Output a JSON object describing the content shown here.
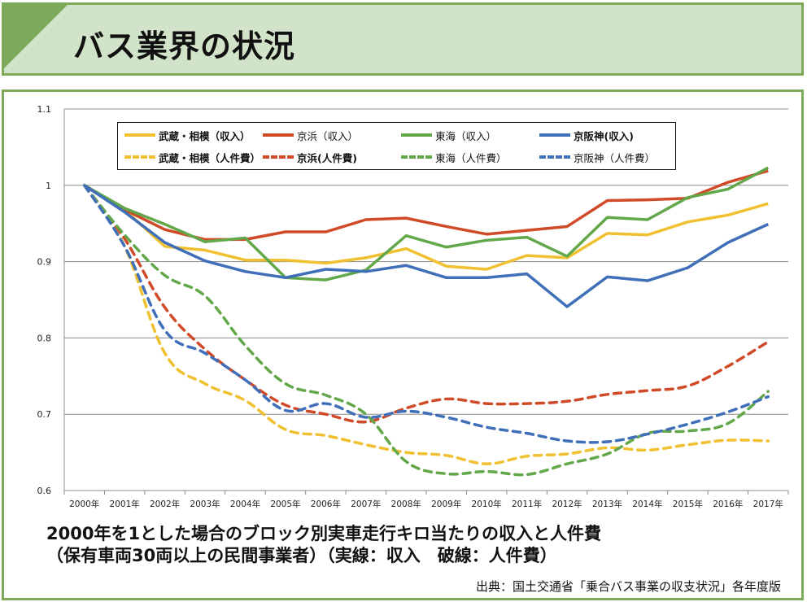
{
  "header": {
    "title": "バス業界の状況"
  },
  "caption": {
    "line1": "2000年を1とした場合のブロック別実車走行キロ当たりの収入と人件費",
    "line2": "（保有車両30両以上の民間事業者）（実線：収入　破線：人件費）",
    "source": "出典：国土交通省「乗合バス事業の収支状況」各年度版"
  },
  "colors": {
    "frame": "#7ea85a",
    "header_bg": "#d1e3c8",
    "musashi": "#f0c030",
    "keihin": "#d04a28",
    "tokai": "#62a84a",
    "keihanshin": "#3f6fb8"
  },
  "chart_data": {
    "type": "line",
    "title": "",
    "xlabel": "",
    "ylabel": "",
    "ylim": [
      0.6,
      1.1
    ],
    "yticks": [
      "0.6",
      "0.7",
      "0.8",
      "0.9",
      "1",
      "1.1"
    ],
    "grid": true,
    "legend_position": "top",
    "categories": [
      "2000年",
      "2001年",
      "2002年",
      "2003年",
      "2004年",
      "2005年",
      "2006年",
      "2007年",
      "2008年",
      "2009年",
      "2010年",
      "2011年",
      "2012年",
      "2013年",
      "2014年",
      "2015年",
      "2016年",
      "2017年"
    ],
    "series": [
      {
        "name": "武蔵・相模（収入）",
        "color": "#f0c030",
        "style": "solid",
        "bold": true,
        "values": [
          1.0,
          0.968,
          0.92,
          0.915,
          0.902,
          0.902,
          0.898,
          0.905,
          0.917,
          0.894,
          0.89,
          0.908,
          0.905,
          0.937,
          0.935,
          0.952,
          0.961,
          0.976
        ]
      },
      {
        "name": "京浜（収入）",
        "color": "#d04a28",
        "style": "solid",
        "bold": false,
        "values": [
          1.0,
          0.968,
          0.942,
          0.929,
          0.929,
          0.939,
          0.939,
          0.955,
          0.957,
          0.946,
          0.936,
          0.941,
          0.946,
          0.98,
          0.981,
          0.983,
          1.004,
          1.019
        ]
      },
      {
        "name": "東海（収入）",
        "color": "#62a84a",
        "style": "solid",
        "bold": false,
        "values": [
          1.0,
          0.97,
          0.949,
          0.926,
          0.931,
          0.879,
          0.876,
          0.889,
          0.934,
          0.919,
          0.928,
          0.932,
          0.907,
          0.958,
          0.955,
          0.984,
          0.995,
          1.023
        ]
      },
      {
        "name": "京阪神(収入)",
        "color": "#3f6fb8",
        "style": "solid",
        "bold": true,
        "values": [
          1.0,
          0.965,
          0.925,
          0.901,
          0.887,
          0.879,
          0.89,
          0.887,
          0.895,
          0.879,
          0.879,
          0.884,
          0.841,
          0.88,
          0.875,
          0.892,
          0.925,
          0.949
        ]
      },
      {
        "name": "武蔵・相模（人件費）",
        "color": "#f0c030",
        "style": "dash",
        "bold": true,
        "values": [
          1.0,
          0.92,
          0.78,
          0.74,
          0.718,
          0.68,
          0.672,
          0.66,
          0.65,
          0.646,
          0.635,
          0.645,
          0.648,
          0.656,
          0.653,
          0.66,
          0.666,
          0.665
        ]
      },
      {
        "name": "京浜(人件費)",
        "color": "#d04a28",
        "style": "dash",
        "bold": true,
        "values": [
          1.0,
          0.93,
          0.84,
          0.785,
          0.745,
          0.712,
          0.7,
          0.69,
          0.708,
          0.72,
          0.714,
          0.714,
          0.717,
          0.726,
          0.731,
          0.737,
          0.763,
          0.795
        ]
      },
      {
        "name": "東海（人件費）",
        "color": "#62a84a",
        "style": "dash",
        "bold": false,
        "values": [
          1.0,
          0.935,
          0.882,
          0.855,
          0.79,
          0.74,
          0.725,
          0.7,
          0.638,
          0.622,
          0.625,
          0.621,
          0.635,
          0.648,
          0.675,
          0.678,
          0.688,
          0.73
        ]
      },
      {
        "name": "京阪神（人件費）",
        "color": "#3f6fb8",
        "style": "dash",
        "bold": false,
        "values": [
          1.0,
          0.92,
          0.81,
          0.78,
          0.745,
          0.705,
          0.714,
          0.696,
          0.704,
          0.696,
          0.683,
          0.675,
          0.665,
          0.664,
          0.674,
          0.687,
          0.703,
          0.723
        ]
      }
    ]
  }
}
